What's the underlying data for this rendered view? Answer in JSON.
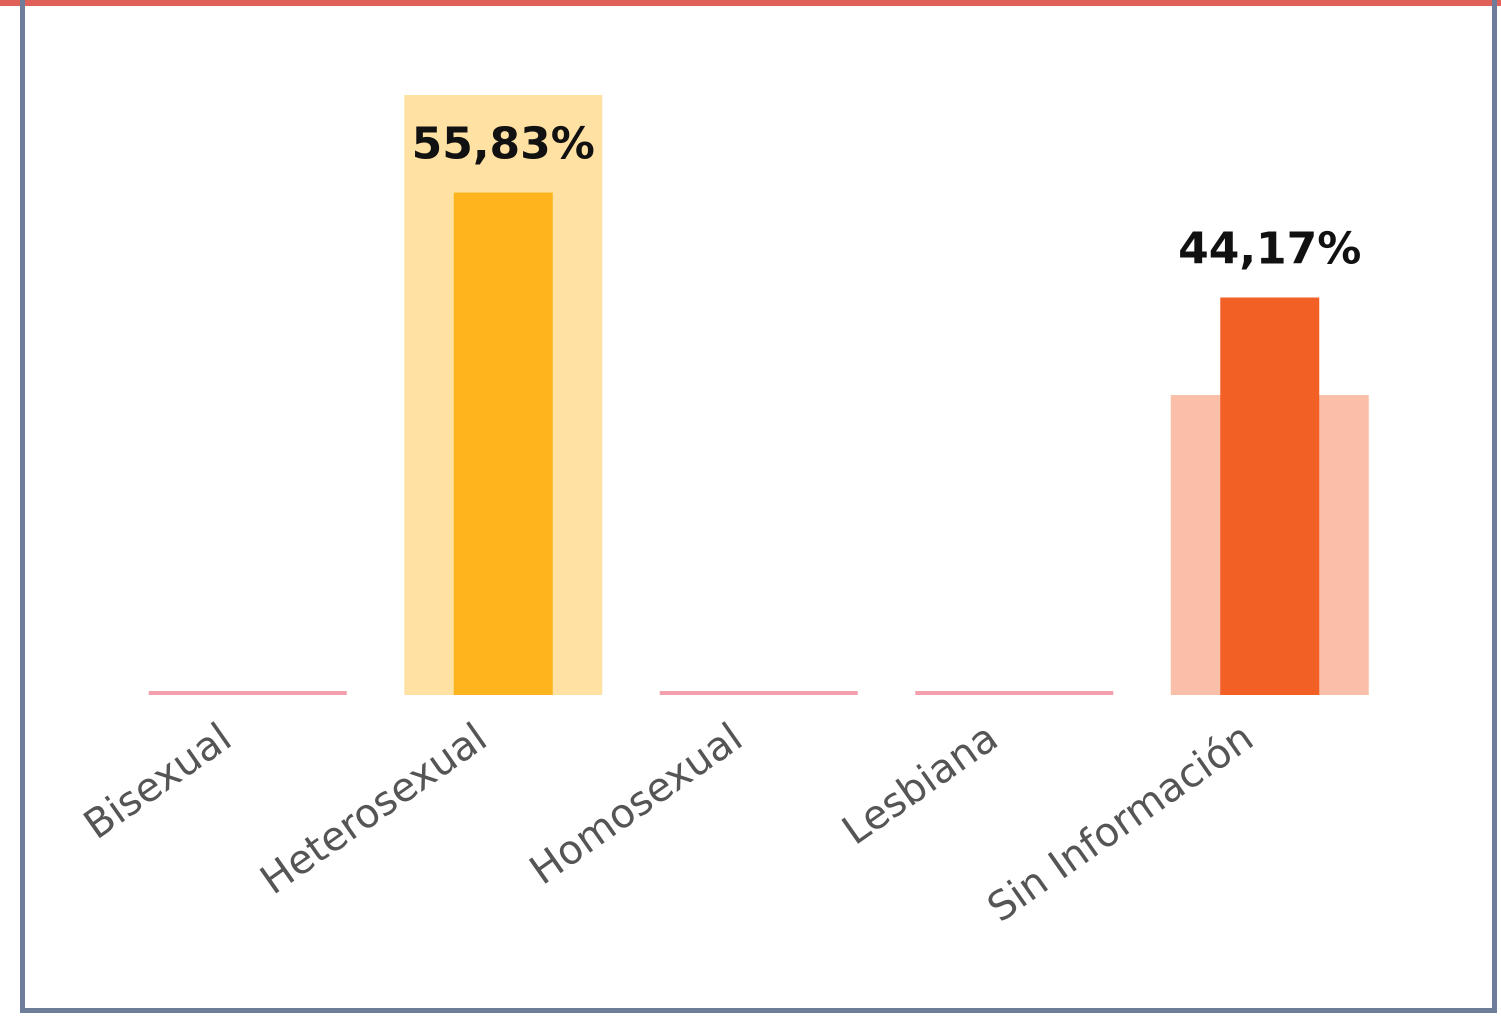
{
  "chart_data": {
    "type": "bar",
    "categories": [
      "Bisexual",
      "Heterosexual",
      "Homosexual",
      "Lesbiana",
      "Sin Información"
    ],
    "series": [
      {
        "colors": [
          "#f3a0ae",
          "#ffe2a3",
          "#f3a0ae",
          "#f3a0ae",
          "#f9bfa8"
        ],
        "values": [
          0,
          66.67,
          0,
          0,
          33.33
        ]
      },
      {
        "colors": [
          "#f3a0ae",
          "#fdb41d",
          "#f3a0ae",
          "#f3a0ae",
          "#f26026"
        ],
        "values": [
          0,
          55.83,
          0,
          0,
          44.17
        ],
        "value_labels": [
          null,
          "55,83%",
          null,
          null,
          "44,17%"
        ]
      }
    ],
    "ylim": [
      0,
      66.67
    ]
  }
}
